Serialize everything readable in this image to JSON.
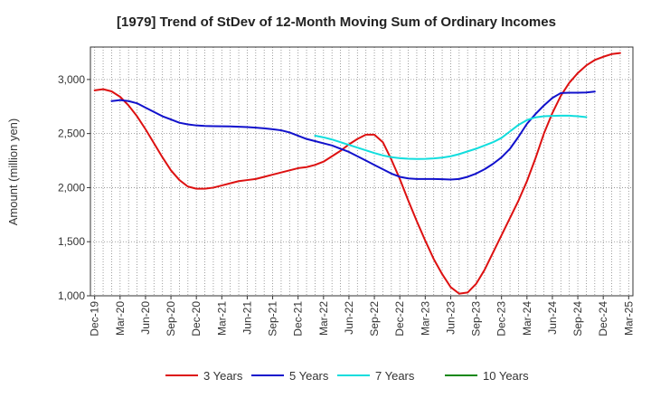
{
  "chart_data": {
    "type": "line",
    "title": "[1979]  Trend of StDev of 12-Month Moving Sum of Ordinary Incomes",
    "xlabel": "",
    "ylabel": "Amount (million yen)",
    "ylim": [
      1000,
      3300
    ],
    "yticks": [
      1000,
      1500,
      2000,
      2500,
      3000
    ],
    "ytick_labels": [
      "1,000",
      "1,500",
      "2,000",
      "2,500",
      "3,000"
    ],
    "x_start": "Dec-19",
    "x_count": 64,
    "xtick_labels": [
      "Dec-19",
      "Mar-20",
      "Jun-20",
      "Sep-20",
      "Dec-20",
      "Mar-21",
      "Jun-21",
      "Sep-21",
      "Dec-21",
      "Mar-22",
      "Jun-22",
      "Sep-22",
      "Dec-22",
      "Mar-23",
      "Jun-23",
      "Sep-23",
      "Dec-23",
      "Mar-24",
      "Jun-24",
      "Sep-24",
      "Dec-24",
      "Mar-25"
    ],
    "grid": true,
    "legend_position": "bottom",
    "series": [
      {
        "name": "3 Years",
        "color": "#dd1111",
        "start_index": 0,
        "values": [
          2900,
          2910,
          2890,
          2840,
          2760,
          2660,
          2540,
          2410,
          2280,
          2160,
          2070,
          2010,
          1990,
          1990,
          2000,
          2020,
          2040,
          2060,
          2070,
          2080,
          2100,
          2120,
          2140,
          2160,
          2180,
          2190,
          2210,
          2240,
          2290,
          2340,
          2400,
          2450,
          2490,
          2490,
          2420,
          2260,
          2080,
          1880,
          1690,
          1510,
          1340,
          1200,
          1080,
          1020,
          1030,
          1110,
          1240,
          1400,
          1560,
          1720,
          1880,
          2060,
          2270,
          2500,
          2690,
          2850,
          2970,
          3060,
          3130,
          3180,
          3210,
          3235,
          3245
        ]
      },
      {
        "name": "5 Years",
        "color": "#1111cc",
        "start_index": 2,
        "values": [
          2800,
          2810,
          2800,
          2780,
          2740,
          2700,
          2660,
          2630,
          2600,
          2585,
          2575,
          2570,
          2568,
          2567,
          2566,
          2563,
          2560,
          2555,
          2548,
          2540,
          2530,
          2510,
          2480,
          2450,
          2430,
          2410,
          2390,
          2360,
          2330,
          2290,
          2250,
          2210,
          2170,
          2130,
          2100,
          2085,
          2080,
          2080,
          2080,
          2078,
          2075,
          2080,
          2100,
          2130,
          2170,
          2220,
          2280,
          2360,
          2470,
          2590,
          2680,
          2760,
          2830,
          2875,
          2878,
          2878,
          2880,
          2888
        ]
      },
      {
        "name": "7 Years",
        "color": "#11dddd",
        "start_index": 26,
        "values": [
          2480,
          2465,
          2445,
          2420,
          2395,
          2370,
          2345,
          2320,
          2298,
          2282,
          2272,
          2267,
          2265,
          2266,
          2270,
          2278,
          2290,
          2310,
          2335,
          2360,
          2390,
          2420,
          2460,
          2520,
          2580,
          2625,
          2650,
          2660,
          2663,
          2665,
          2665,
          2660,
          2652
        ]
      },
      {
        "name": "10 Years",
        "color": "#118811",
        "start_index": 0,
        "values": []
      }
    ]
  }
}
